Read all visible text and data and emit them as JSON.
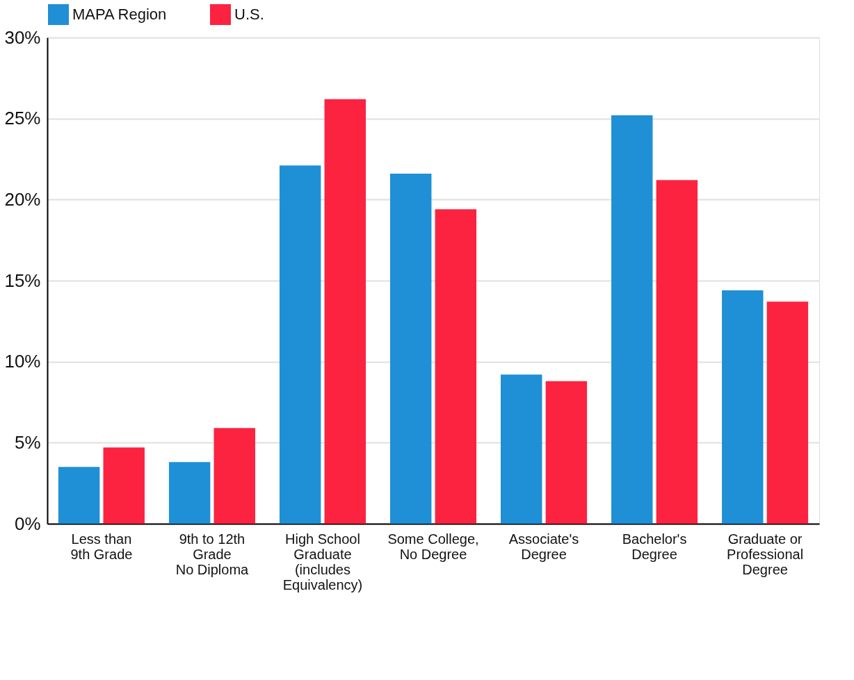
{
  "chart_data": {
    "type": "bar",
    "categories": [
      "Less than\n9th Grade",
      "9th to 12th\nGrade\nNo Diploma",
      "High School\nGraduate\n(includes\nEquivalency)",
      "Some College,\nNo Degree",
      "Associate's\nDegree",
      "Bachelor's\nDegree",
      "Graduate or\nProfessional\nDegree"
    ],
    "series": [
      {
        "name": "MAPA Region",
        "color": "#1f8fd6",
        "values": [
          3.5,
          3.8,
          22.1,
          21.6,
          9.2,
          25.2,
          14.4
        ]
      },
      {
        "name": "U.S.",
        "color": "#fc2340",
        "values": [
          4.7,
          5.9,
          26.2,
          19.4,
          8.8,
          21.2,
          13.7
        ]
      }
    ],
    "ylim": [
      0,
      30
    ],
    "yticks": [
      {
        "value": 0,
        "label": "0%"
      },
      {
        "value": 5,
        "label": "5%"
      },
      {
        "value": 10,
        "label": "10%"
      },
      {
        "value": 15,
        "label": "15%"
      },
      {
        "value": 20,
        "label": "20%"
      },
      {
        "value": 25,
        "label": "25%"
      },
      {
        "value": 30,
        "label": "30%"
      }
    ],
    "grid": "y",
    "legend": "top"
  }
}
